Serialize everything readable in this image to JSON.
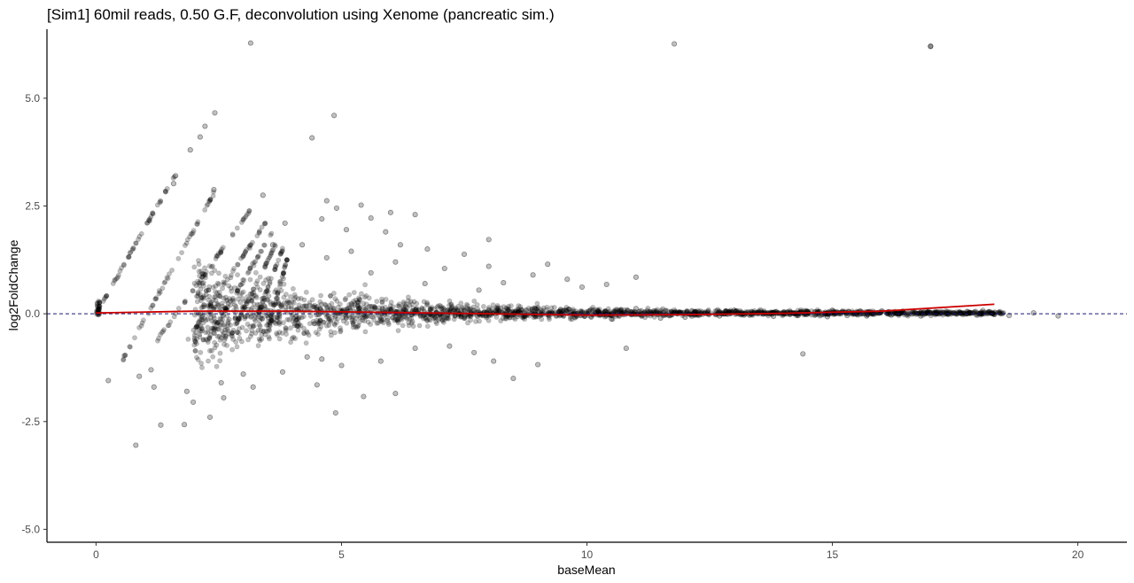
{
  "chart_data": {
    "type": "scatter",
    "title": "[Sim1] 60mil reads, 0.50 G.F, deconvolution using Xenome (pancreatic sim.)",
    "xlabel": "baseMean",
    "ylabel": "log2FoldChange",
    "xlim": [
      -1,
      21
    ],
    "ylim": [
      -5.3,
      6.6
    ],
    "xticks": [
      0,
      5,
      10,
      15,
      20
    ],
    "yticks": [
      -5.0,
      -2.5,
      0.0,
      2.5,
      5.0
    ],
    "xtick_labels": [
      "0",
      "5",
      "10",
      "15",
      "20"
    ],
    "ytick_labels": [
      "-5.0",
      "-2.5",
      "0.0",
      "2.5",
      "5.0"
    ],
    "grid": false,
    "reference_line": {
      "y": 0,
      "style": "dashed",
      "color": "#191970"
    },
    "point_color": "#000000",
    "point_alpha": 0.25,
    "trend_color": "#cc0000",
    "trend_line": [
      [
        0.0,
        0.02
      ],
      [
        2,
        0.06
      ],
      [
        4,
        0.06
      ],
      [
        6,
        0.03
      ],
      [
        8,
        0.0
      ],
      [
        10,
        -0.03
      ],
      [
        12,
        -0.02
      ],
      [
        14,
        0.01
      ],
      [
        16,
        0.06
      ],
      [
        18.3,
        0.22
      ]
    ],
    "points": [
      [
        3.15,
        6.28
      ],
      [
        11.78,
        6.26
      ],
      [
        17.0,
        6.2
      ],
      [
        17.0,
        6.21
      ],
      [
        2.42,
        4.66
      ],
      [
        4.85,
        4.6
      ],
      [
        2.22,
        4.35
      ],
      [
        2.12,
        4.1
      ],
      [
        4.4,
        4.08
      ],
      [
        1.92,
        3.8
      ],
      [
        1.62,
        3.2
      ],
      [
        1.58,
        3.02
      ],
      [
        2.4,
        2.88
      ],
      [
        3.4,
        2.75
      ],
      [
        4.7,
        2.62
      ],
      [
        5.4,
        2.52
      ],
      [
        4.9,
        2.45
      ],
      [
        6.0,
        2.35
      ],
      [
        5.6,
        2.22
      ],
      [
        6.5,
        2.3
      ],
      [
        3.85,
        2.1
      ],
      [
        4.6,
        2.2
      ],
      [
        5.1,
        1.95
      ],
      [
        5.9,
        1.9
      ],
      [
        6.2,
        1.6
      ],
      [
        8.0,
        1.72
      ],
      [
        6.75,
        1.5
      ],
      [
        7.5,
        1.38
      ],
      [
        5.2,
        1.45
      ],
      [
        4.7,
        1.3
      ],
      [
        4.2,
        1.6
      ],
      [
        8.0,
        1.1
      ],
      [
        9.2,
        1.15
      ],
      [
        8.9,
        0.9
      ],
      [
        7.1,
        1.05
      ],
      [
        6.1,
        1.2
      ],
      [
        5.6,
        0.95
      ],
      [
        3.6,
        1.6
      ],
      [
        8.3,
        0.72
      ],
      [
        9.6,
        0.8
      ],
      [
        10.4,
        0.68
      ],
      [
        11.0,
        0.85
      ],
      [
        9.9,
        0.62
      ],
      [
        7.8,
        0.55
      ],
      [
        6.7,
        0.7
      ],
      [
        4.3,
        -1.0
      ],
      [
        4.6,
        -1.05
      ],
      [
        5.0,
        -1.2
      ],
      [
        5.8,
        -1.1
      ],
      [
        6.5,
        -0.8
      ],
      [
        7.2,
        -0.75
      ],
      [
        7.7,
        -0.9
      ],
      [
        8.1,
        -1.1
      ],
      [
        9.0,
        -1.18
      ],
      [
        8.5,
        -1.5
      ],
      [
        10.8,
        -0.8
      ],
      [
        14.4,
        -0.93
      ],
      [
        6.1,
        -1.85
      ],
      [
        5.45,
        -1.92
      ],
      [
        4.88,
        -2.3
      ],
      [
        4.5,
        -1.65
      ],
      [
        3.8,
        -1.35
      ],
      [
        3.2,
        -1.7
      ],
      [
        2.6,
        -1.95
      ],
      [
        2.32,
        -2.4
      ],
      [
        1.98,
        -2.05
      ],
      [
        1.85,
        -1.8
      ],
      [
        1.32,
        -2.58
      ],
      [
        1.8,
        -2.57
      ],
      [
        0.81,
        -3.05
      ],
      [
        0.25,
        -1.55
      ],
      [
        1.18,
        -1.7
      ],
      [
        0.88,
        -1.45
      ],
      [
        1.12,
        -1.3
      ],
      [
        3.0,
        -1.4
      ],
      [
        2.55,
        -1.6
      ],
      [
        12.7,
        -0.05
      ],
      [
        13.2,
        -0.03
      ],
      [
        13.8,
        -0.06
      ],
      [
        14.3,
        -0.04
      ],
      [
        14.9,
        -0.07
      ],
      [
        15.3,
        -0.04
      ],
      [
        15.7,
        -0.05
      ],
      [
        16.2,
        -0.03
      ],
      [
        16.8,
        -0.05
      ],
      [
        17.3,
        0.0
      ],
      [
        17.8,
        0.02
      ],
      [
        18.3,
        -0.02
      ],
      [
        18.6,
        -0.04
      ],
      [
        19.1,
        0.02
      ],
      [
        19.6,
        -0.05
      ],
      [
        12.2,
        0.05
      ],
      [
        13.0,
        0.08
      ],
      [
        14.0,
        0.03
      ],
      [
        15.0,
        0.08
      ],
      [
        16.0,
        0.06
      ],
      [
        11.5,
        -0.1
      ],
      [
        12.0,
        -0.08
      ],
      [
        10.5,
        -0.12
      ],
      [
        11.0,
        0.12
      ]
    ]
  }
}
